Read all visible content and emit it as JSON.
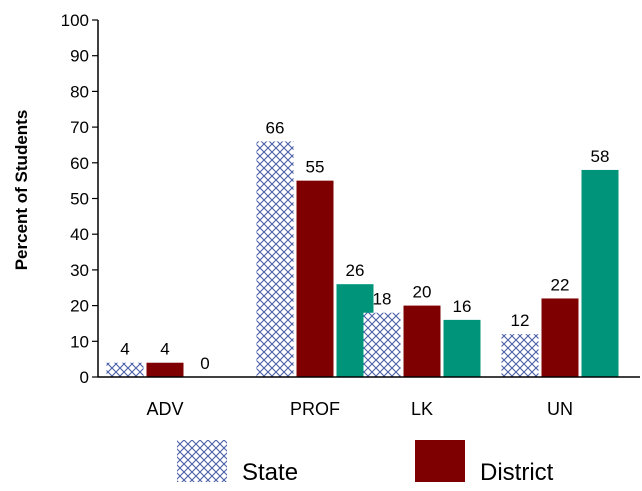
{
  "chart_data": {
    "type": "bar",
    "categories": [
      "ADV",
      "PROF",
      "LK",
      "UN"
    ],
    "series": [
      {
        "name": "State",
        "values": [
          4,
          66,
          18,
          12
        ],
        "color": "#4a5fa8",
        "pattern": "crosshatch"
      },
      {
        "name": "District",
        "values": [
          4,
          55,
          20,
          22
        ],
        "color": "#7f0000"
      },
      {
        "name": "",
        "values": [
          0,
          26,
          16,
          58
        ],
        "color": "#00957a"
      }
    ],
    "ylabel": "Percent of Students",
    "xlabel": "",
    "ylim": [
      0,
      100
    ],
    "yticks": [
      0,
      10,
      20,
      30,
      40,
      50,
      60,
      70,
      80,
      90,
      100
    ],
    "grid": false,
    "legend_position": "bottom"
  }
}
